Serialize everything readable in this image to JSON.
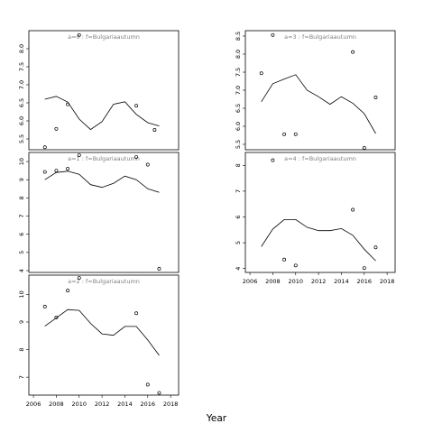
{
  "chart_data": {
    "type": "scatter",
    "xlabel": "Year",
    "panels": [
      {
        "strip": "a=0  :  f=Bulgariaautumn",
        "xlim": [
          2005.6,
          2018.7
        ],
        "ylim": [
          5.2,
          8.5
        ],
        "yticks": [
          5.5,
          6.0,
          6.5,
          7.0,
          7.5,
          8.0
        ],
        "ytick_labels": [
          "5.5",
          "6.0",
          "6.5",
          "7.0",
          "7.5",
          "8.0"
        ],
        "xticks": [],
        "xtick_labels": [],
        "points": [
          [
            2007,
            5.27
          ],
          [
            2008,
            5.78
          ],
          [
            2009,
            6.46
          ],
          [
            2010,
            8.38
          ],
          [
            2015,
            6.42
          ],
          [
            2016.6,
            5.75
          ]
        ],
        "curve": [
          [
            2007,
            6.6
          ],
          [
            2008,
            6.68
          ],
          [
            2009,
            6.52
          ],
          [
            2010,
            6.05
          ],
          [
            2011,
            5.76
          ],
          [
            2012,
            5.98
          ],
          [
            2013,
            6.46
          ],
          [
            2014,
            6.53
          ],
          [
            2015,
            6.18
          ],
          [
            2016,
            5.95
          ],
          [
            2017,
            5.86
          ]
        ]
      },
      {
        "strip": "a=3  :  f=Bulgariaautumn",
        "xlim": [
          2005.6,
          2018.7
        ],
        "ylim": [
          5.35,
          8.65
        ],
        "yticks": [
          5.5,
          6.0,
          6.5,
          7.0,
          7.5,
          8.0,
          8.5
        ],
        "ytick_labels": [
          "5.5",
          "6.0",
          "6.5",
          "7.0",
          "7.5",
          "8.0",
          "8.5"
        ],
        "xticks": [],
        "xtick_labels": [],
        "points": [
          [
            2007,
            7.47
          ],
          [
            2008,
            8.53
          ],
          [
            2009,
            5.78
          ],
          [
            2010,
            5.78
          ],
          [
            2015,
            8.06
          ],
          [
            2016,
            5.4
          ],
          [
            2017,
            6.8
          ]
        ],
        "curve": [
          [
            2007,
            6.68
          ],
          [
            2008,
            7.18
          ],
          [
            2009,
            7.31
          ],
          [
            2010,
            7.43
          ],
          [
            2011,
            7.0
          ],
          [
            2012,
            6.82
          ],
          [
            2013,
            6.61
          ],
          [
            2014,
            6.82
          ],
          [
            2015,
            6.64
          ],
          [
            2016,
            6.35
          ],
          [
            2017,
            5.8
          ]
        ]
      },
      {
        "strip": "a=1  :  f=Bulgariaautumn",
        "xlim": [
          2005.6,
          2018.7
        ],
        "ylim": [
          3.9,
          10.5
        ],
        "yticks": [
          4,
          5,
          6,
          7,
          8,
          9,
          10
        ],
        "ytick_labels": [
          "4",
          "5",
          "6",
          "7",
          "8",
          "9",
          "10"
        ],
        "xticks": [],
        "xtick_labels": [],
        "points": [
          [
            2007,
            9.43
          ],
          [
            2008,
            9.5
          ],
          [
            2009,
            9.6
          ],
          [
            2010,
            10.35
          ],
          [
            2015,
            10.25
          ],
          [
            2016,
            9.83
          ],
          [
            2017,
            4.1
          ]
        ],
        "curve": [
          [
            2007,
            9.0
          ],
          [
            2008,
            9.4
          ],
          [
            2009,
            9.47
          ],
          [
            2010,
            9.3
          ],
          [
            2011,
            8.73
          ],
          [
            2012,
            8.58
          ],
          [
            2013,
            8.8
          ],
          [
            2014,
            9.2
          ],
          [
            2015,
            9.0
          ],
          [
            2016,
            8.5
          ],
          [
            2017,
            8.3
          ]
        ]
      },
      {
        "strip": "a=4  :  f=Bulgariaautumn",
        "xlim": [
          2005.6,
          2018.7
        ],
        "ylim": [
          3.85,
          8.5
        ],
        "yticks": [
          4,
          5,
          6,
          7,
          8
        ],
        "ytick_labels": [
          "4",
          "5",
          "6",
          "7",
          "8"
        ],
        "xticks": [
          2006,
          2008,
          2010,
          2012,
          2014,
          2016,
          2018
        ],
        "xtick_labels": [
          "2006",
          "2008",
          "2010",
          "2012",
          "2014",
          "2016",
          "2018"
        ],
        "points": [
          [
            2008,
            8.2
          ],
          [
            2009,
            4.35
          ],
          [
            2010,
            4.12
          ],
          [
            2015,
            6.28
          ],
          [
            2016,
            4.02
          ],
          [
            2017,
            4.82
          ]
        ],
        "curve": [
          [
            2007,
            4.85
          ],
          [
            2008,
            5.53
          ],
          [
            2009,
            5.9
          ],
          [
            2010,
            5.9
          ],
          [
            2011,
            5.6
          ],
          [
            2012,
            5.47
          ],
          [
            2013,
            5.47
          ],
          [
            2014,
            5.55
          ],
          [
            2015,
            5.29
          ],
          [
            2016,
            4.75
          ],
          [
            2017,
            4.3
          ]
        ]
      },
      {
        "strip": "a=2  :  f=Bulgariaautumn",
        "xlim": [
          2005.6,
          2018.7
        ],
        "ylim": [
          6.35,
          10.7
        ],
        "yticks": [
          7,
          8,
          9,
          10
        ],
        "ytick_labels": [
          "7",
          "8",
          "9",
          "10"
        ],
        "xticks": [
          2006,
          2008,
          2010,
          2012,
          2014,
          2016,
          2018
        ],
        "xtick_labels": [
          "2006",
          "2008",
          "2010",
          "2012",
          "2014",
          "2016",
          "2018"
        ],
        "points": [
          [
            2007,
            9.56
          ],
          [
            2008,
            9.17
          ],
          [
            2009,
            10.14
          ],
          [
            2010,
            10.6
          ],
          [
            2015,
            9.32
          ],
          [
            2016,
            6.73
          ],
          [
            2017,
            6.43
          ]
        ],
        "curve": [
          [
            2007,
            8.85
          ],
          [
            2008,
            9.15
          ],
          [
            2009,
            9.45
          ],
          [
            2010,
            9.42
          ],
          [
            2011,
            8.95
          ],
          [
            2012,
            8.57
          ],
          [
            2013,
            8.52
          ],
          [
            2014,
            8.84
          ],
          [
            2015,
            8.84
          ],
          [
            2016,
            8.35
          ],
          [
            2017,
            7.79
          ]
        ]
      }
    ]
  }
}
